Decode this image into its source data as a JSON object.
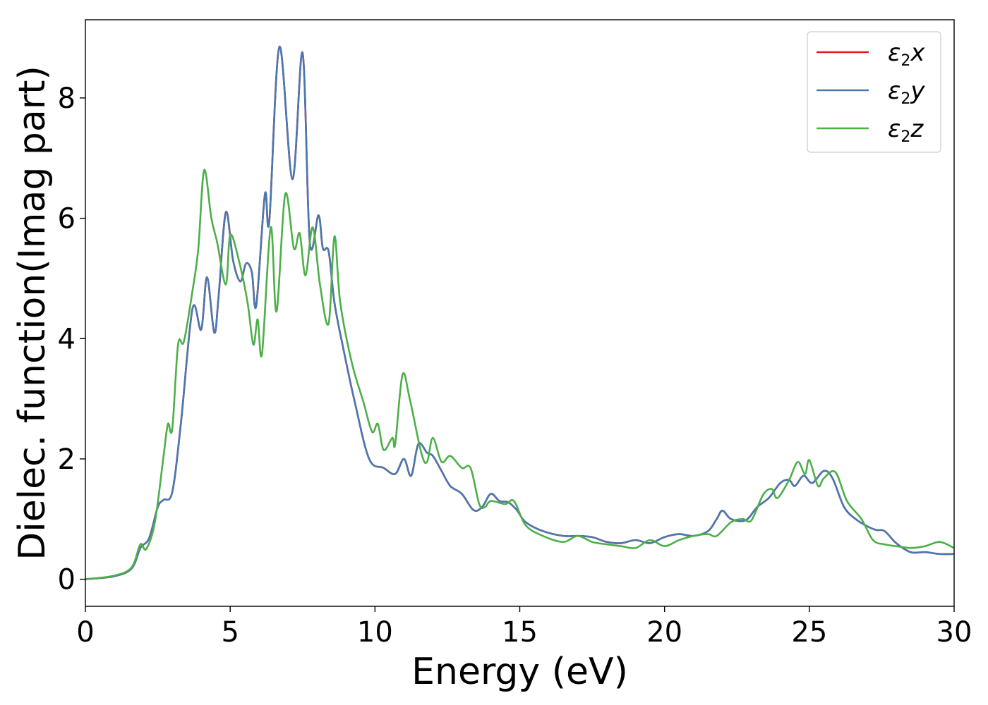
{
  "chart_data": {
    "type": "line",
    "xlabel": "Energy (eV)",
    "ylabel": "Dielec. function(Imag part)",
    "xlim": [
      0,
      30
    ],
    "ylim": [
      -0.45,
      9.3
    ],
    "xticks": [
      0,
      5,
      10,
      15,
      20,
      25,
      30
    ],
    "yticks": [
      0,
      2,
      4,
      6,
      8
    ],
    "grid": false,
    "legend_position": "top-right",
    "series": [
      {
        "name": "ε2x",
        "legend_symbol": "ε",
        "legend_subscript": "2",
        "legend_suffix": "x",
        "color": "#e41a1c",
        "points": [
          [
            0,
            0.0
          ],
          [
            1.0,
            0.05
          ],
          [
            1.6,
            0.18
          ],
          [
            1.9,
            0.52
          ],
          [
            2.2,
            0.68
          ],
          [
            2.5,
            1.2
          ],
          [
            2.7,
            1.32
          ],
          [
            3.0,
            1.45
          ],
          [
            3.3,
            2.6
          ],
          [
            3.7,
            4.5
          ],
          [
            4.0,
            4.15
          ],
          [
            4.2,
            5.02
          ],
          [
            4.45,
            4.1
          ],
          [
            4.6,
            4.7
          ],
          [
            4.85,
            6.1
          ],
          [
            5.1,
            5.3
          ],
          [
            5.35,
            4.95
          ],
          [
            5.55,
            5.25
          ],
          [
            5.75,
            5.1
          ],
          [
            5.9,
            4.55
          ],
          [
            6.2,
            6.4
          ],
          [
            6.35,
            5.95
          ],
          [
            6.7,
            8.85
          ],
          [
            7.15,
            6.65
          ],
          [
            7.5,
            8.75
          ],
          [
            7.75,
            5.6
          ],
          [
            8.05,
            6.05
          ],
          [
            8.2,
            5.5
          ],
          [
            8.4,
            5.45
          ],
          [
            8.6,
            4.6
          ],
          [
            8.9,
            3.85
          ],
          [
            9.3,
            2.95
          ],
          [
            9.8,
            2.0
          ],
          [
            10.3,
            1.85
          ],
          [
            10.7,
            1.75
          ],
          [
            11.0,
            2.0
          ],
          [
            11.25,
            1.72
          ],
          [
            11.5,
            2.25
          ],
          [
            11.8,
            2.1
          ],
          [
            12.0,
            2.05
          ],
          [
            12.3,
            1.8
          ],
          [
            12.6,
            1.55
          ],
          [
            13.0,
            1.42
          ],
          [
            13.4,
            1.15
          ],
          [
            13.7,
            1.2
          ],
          [
            14.0,
            1.42
          ],
          [
            14.3,
            1.3
          ],
          [
            14.6,
            1.28
          ],
          [
            14.9,
            1.15
          ],
          [
            15.2,
            0.95
          ],
          [
            15.8,
            0.8
          ],
          [
            16.5,
            0.72
          ],
          [
            17.0,
            0.72
          ],
          [
            17.5,
            0.7
          ],
          [
            18.0,
            0.62
          ],
          [
            18.5,
            0.6
          ],
          [
            19.0,
            0.65
          ],
          [
            19.5,
            0.6
          ],
          [
            20.0,
            0.7
          ],
          [
            20.5,
            0.75
          ],
          [
            21.0,
            0.72
          ],
          [
            21.5,
            0.8
          ],
          [
            21.8,
            1.0
          ],
          [
            22.0,
            1.14
          ],
          [
            22.3,
            1.0
          ],
          [
            22.8,
            0.98
          ],
          [
            23.2,
            1.2
          ],
          [
            23.6,
            1.35
          ],
          [
            24.0,
            1.6
          ],
          [
            24.3,
            1.65
          ],
          [
            24.5,
            1.55
          ],
          [
            24.8,
            1.72
          ],
          [
            25.1,
            1.6
          ],
          [
            25.5,
            1.8
          ],
          [
            25.8,
            1.68
          ],
          [
            26.2,
            1.2
          ],
          [
            26.6,
            1.0
          ],
          [
            27.0,
            0.88
          ],
          [
            27.3,
            0.82
          ],
          [
            27.6,
            0.8
          ],
          [
            28.0,
            0.6
          ],
          [
            28.5,
            0.45
          ],
          [
            29.0,
            0.45
          ],
          [
            29.5,
            0.42
          ],
          [
            30.0,
            0.42
          ]
        ]
      },
      {
        "name": "ε2y",
        "legend_symbol": "ε",
        "legend_subscript": "2",
        "legend_suffix": "y",
        "color": "#4a78b0",
        "points": [
          [
            0,
            0.0
          ],
          [
            1.0,
            0.05
          ],
          [
            1.6,
            0.18
          ],
          [
            1.9,
            0.52
          ],
          [
            2.2,
            0.68
          ],
          [
            2.5,
            1.2
          ],
          [
            2.7,
            1.32
          ],
          [
            3.0,
            1.45
          ],
          [
            3.3,
            2.6
          ],
          [
            3.7,
            4.5
          ],
          [
            4.0,
            4.15
          ],
          [
            4.2,
            5.02
          ],
          [
            4.45,
            4.1
          ],
          [
            4.6,
            4.7
          ],
          [
            4.85,
            6.1
          ],
          [
            5.1,
            5.3
          ],
          [
            5.35,
            4.95
          ],
          [
            5.55,
            5.25
          ],
          [
            5.75,
            5.1
          ],
          [
            5.9,
            4.55
          ],
          [
            6.2,
            6.4
          ],
          [
            6.35,
            5.95
          ],
          [
            6.7,
            8.85
          ],
          [
            7.15,
            6.65
          ],
          [
            7.5,
            8.75
          ],
          [
            7.75,
            5.6
          ],
          [
            8.05,
            6.05
          ],
          [
            8.2,
            5.5
          ],
          [
            8.4,
            5.45
          ],
          [
            8.6,
            4.6
          ],
          [
            8.9,
            3.85
          ],
          [
            9.3,
            2.95
          ],
          [
            9.8,
            2.0
          ],
          [
            10.3,
            1.85
          ],
          [
            10.7,
            1.75
          ],
          [
            11.0,
            2.0
          ],
          [
            11.25,
            1.72
          ],
          [
            11.5,
            2.25
          ],
          [
            11.8,
            2.1
          ],
          [
            12.0,
            2.05
          ],
          [
            12.3,
            1.8
          ],
          [
            12.6,
            1.55
          ],
          [
            13.0,
            1.42
          ],
          [
            13.4,
            1.15
          ],
          [
            13.7,
            1.2
          ],
          [
            14.0,
            1.42
          ],
          [
            14.3,
            1.3
          ],
          [
            14.6,
            1.28
          ],
          [
            14.9,
            1.15
          ],
          [
            15.2,
            0.95
          ],
          [
            15.8,
            0.8
          ],
          [
            16.5,
            0.72
          ],
          [
            17.0,
            0.72
          ],
          [
            17.5,
            0.7
          ],
          [
            18.0,
            0.62
          ],
          [
            18.5,
            0.6
          ],
          [
            19.0,
            0.65
          ],
          [
            19.5,
            0.6
          ],
          [
            20.0,
            0.7
          ],
          [
            20.5,
            0.75
          ],
          [
            21.0,
            0.72
          ],
          [
            21.5,
            0.8
          ],
          [
            21.8,
            1.0
          ],
          [
            22.0,
            1.14
          ],
          [
            22.3,
            1.0
          ],
          [
            22.8,
            0.98
          ],
          [
            23.2,
            1.2
          ],
          [
            23.6,
            1.35
          ],
          [
            24.0,
            1.6
          ],
          [
            24.3,
            1.65
          ],
          [
            24.5,
            1.55
          ],
          [
            24.8,
            1.72
          ],
          [
            25.1,
            1.6
          ],
          [
            25.5,
            1.8
          ],
          [
            25.8,
            1.68
          ],
          [
            26.2,
            1.2
          ],
          [
            26.6,
            1.0
          ],
          [
            27.0,
            0.88
          ],
          [
            27.3,
            0.82
          ],
          [
            27.6,
            0.8
          ],
          [
            28.0,
            0.6
          ],
          [
            28.5,
            0.45
          ],
          [
            29.0,
            0.45
          ],
          [
            29.5,
            0.42
          ],
          [
            30.0,
            0.42
          ]
        ]
      },
      {
        "name": "ε2z",
        "legend_symbol": "ε",
        "legend_subscript": "2",
        "legend_suffix": "z",
        "color": "#4daf4a",
        "points": [
          [
            0,
            0.0
          ],
          [
            1.0,
            0.06
          ],
          [
            1.6,
            0.2
          ],
          [
            1.9,
            0.58
          ],
          [
            2.1,
            0.5
          ],
          [
            2.4,
            0.95
          ],
          [
            2.7,
            2.05
          ],
          [
            2.85,
            2.58
          ],
          [
            3.0,
            2.5
          ],
          [
            3.2,
            3.9
          ],
          [
            3.4,
            3.95
          ],
          [
            3.7,
            4.8
          ],
          [
            3.9,
            5.5
          ],
          [
            4.1,
            6.8
          ],
          [
            4.35,
            6.0
          ],
          [
            4.55,
            5.6
          ],
          [
            4.85,
            4.9
          ],
          [
            5.0,
            5.72
          ],
          [
            5.3,
            5.3
          ],
          [
            5.6,
            4.6
          ],
          [
            5.8,
            3.9
          ],
          [
            5.95,
            4.32
          ],
          [
            6.1,
            3.75
          ],
          [
            6.4,
            5.85
          ],
          [
            6.6,
            4.45
          ],
          [
            6.9,
            6.4
          ],
          [
            7.2,
            5.5
          ],
          [
            7.4,
            5.75
          ],
          [
            7.6,
            5.05
          ],
          [
            7.85,
            5.85
          ],
          [
            8.1,
            4.9
          ],
          [
            8.4,
            4.25
          ],
          [
            8.6,
            5.7
          ],
          [
            8.8,
            4.6
          ],
          [
            9.2,
            3.6
          ],
          [
            9.6,
            2.95
          ],
          [
            9.9,
            2.45
          ],
          [
            10.1,
            2.58
          ],
          [
            10.3,
            2.15
          ],
          [
            10.6,
            2.35
          ],
          [
            10.7,
            2.25
          ],
          [
            10.95,
            3.4
          ],
          [
            11.2,
            3.0
          ],
          [
            11.6,
            2.1
          ],
          [
            11.8,
            1.95
          ],
          [
            12.0,
            2.35
          ],
          [
            12.3,
            1.95
          ],
          [
            12.6,
            2.05
          ],
          [
            13.0,
            1.85
          ],
          [
            13.3,
            1.85
          ],
          [
            13.6,
            1.25
          ],
          [
            13.8,
            1.2
          ],
          [
            14.0,
            1.3
          ],
          [
            14.5,
            1.25
          ],
          [
            14.8,
            1.3
          ],
          [
            15.2,
            0.9
          ],
          [
            15.8,
            0.72
          ],
          [
            16.5,
            0.62
          ],
          [
            17.0,
            0.72
          ],
          [
            17.5,
            0.62
          ],
          [
            18.0,
            0.58
          ],
          [
            18.5,
            0.55
          ],
          [
            19.0,
            0.52
          ],
          [
            19.5,
            0.65
          ],
          [
            20.0,
            0.55
          ],
          [
            20.5,
            0.65
          ],
          [
            21.0,
            0.72
          ],
          [
            21.5,
            0.75
          ],
          [
            21.8,
            0.72
          ],
          [
            22.3,
            0.95
          ],
          [
            22.7,
            1.0
          ],
          [
            23.0,
            0.98
          ],
          [
            23.4,
            1.4
          ],
          [
            23.7,
            1.5
          ],
          [
            23.9,
            1.35
          ],
          [
            24.3,
            1.65
          ],
          [
            24.6,
            1.95
          ],
          [
            24.85,
            1.75
          ],
          [
            25.0,
            1.98
          ],
          [
            25.3,
            1.55
          ],
          [
            25.5,
            1.68
          ],
          [
            25.9,
            1.78
          ],
          [
            26.3,
            1.3
          ],
          [
            26.8,
            1.0
          ],
          [
            27.2,
            0.65
          ],
          [
            27.6,
            0.58
          ],
          [
            28.0,
            0.55
          ],
          [
            28.5,
            0.52
          ],
          [
            29.0,
            0.55
          ],
          [
            29.5,
            0.62
          ],
          [
            30.0,
            0.52
          ]
        ]
      }
    ]
  }
}
